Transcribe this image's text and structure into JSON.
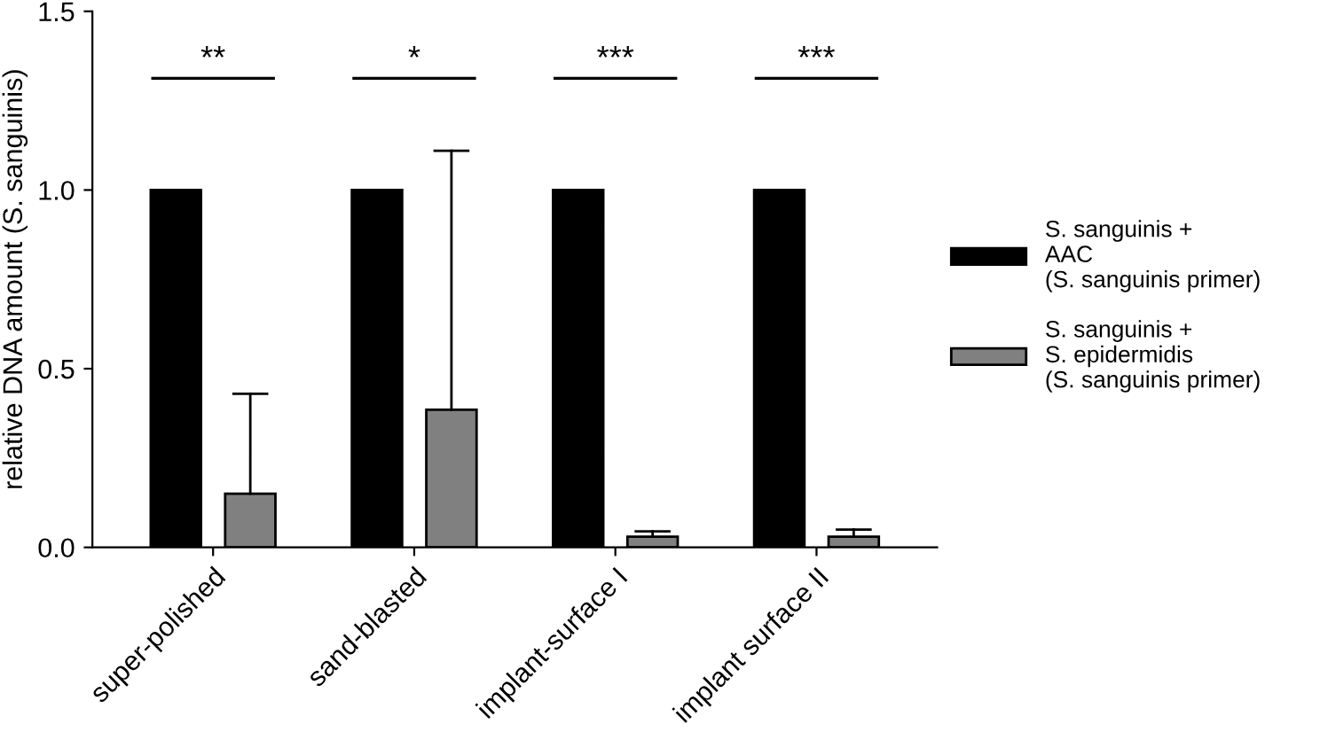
{
  "chart_data": {
    "type": "bar",
    "ylabel": "relative DNA amount (S. sanguinis)",
    "categories": [
      "super-polished",
      "sand-blasted",
      "implant-surface I",
      "implant surface II"
    ],
    "series": [
      {
        "name": "S. sanguinis +\nAAC\n(S. sanguinis primer)",
        "color": "#000000",
        "values": [
          1.0,
          1.0,
          1.0,
          1.0
        ]
      },
      {
        "name": "S. sanguinis +\nS. epidermidis\n(S. sanguinis primer)",
        "color": "#808080",
        "values": [
          0.15,
          0.385,
          0.03,
          0.03
        ],
        "errors": [
          [
            0.15,
            0.43
          ],
          [
            0.385,
            1.11
          ],
          [
            0.03,
            0.045
          ],
          [
            0.03,
            0.05
          ]
        ]
      }
    ],
    "ylim": [
      0,
      1.5
    ],
    "yticks": [
      {
        "value": 0,
        "label": "0.0"
      },
      {
        "value": 0.5,
        "label": "0.5"
      },
      {
        "value": 1,
        "label": "1.0"
      },
      {
        "value": 1.5,
        "label": "1.5"
      }
    ],
    "grid": false,
    "legend": "right",
    "annotations": [
      "**",
      "*",
      "***",
      "***"
    ]
  }
}
